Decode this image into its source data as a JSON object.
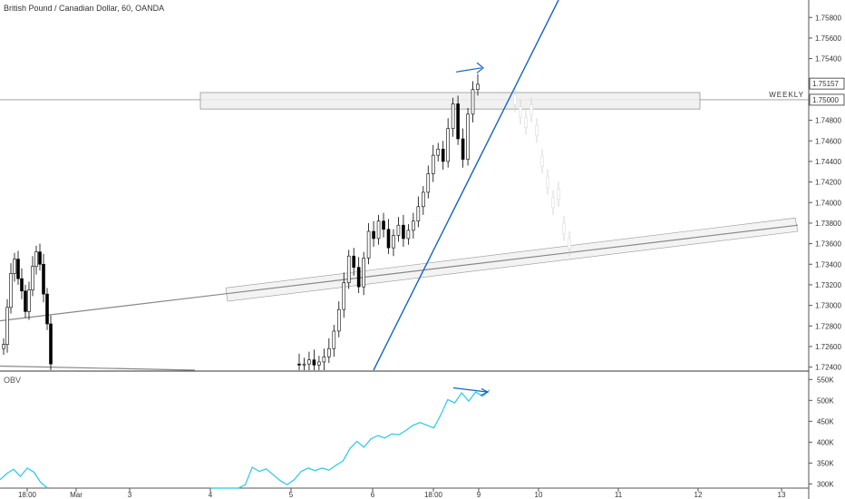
{
  "chart_title": "British Pound / Canadian Dollar, 60, OANDA",
  "obv_label": "OBV",
  "weekly_label": "WEEKLY",
  "chart_data": [
    {
      "type": "candlestick",
      "title": "British Pound / Canadian Dollar, 60, OANDA",
      "ylim": [
        1.7237,
        1.7597
      ],
      "y_ticks": [
        "1.75800",
        "1.75600",
        "1.75400",
        "1.75000",
        "1.74800",
        "1.74600",
        "1.74400",
        "1.74200",
        "1.74000",
        "1.73800",
        "1.73600",
        "1.73400",
        "1.73200",
        "1.73000",
        "1.72800",
        "1.72600",
        "1.72400"
      ],
      "last_price_label": "1.75157",
      "level_label": "1.75000",
      "level_price": 1.75,
      "x_ticks": [
        "18:00",
        "Mar",
        "3",
        "4",
        "5",
        "6",
        "18:00",
        "9",
        "10",
        "11",
        "12",
        "13"
      ],
      "approx_closes": [
        1.7262,
        1.7298,
        1.7331,
        1.7345,
        1.7326,
        1.7314,
        1.7294,
        1.7315,
        1.7338,
        1.7352,
        1.734,
        1.7311,
        1.7282,
        1.7243,
        1.7242,
        1.7243,
        1.7247,
        1.7242,
        1.7245,
        1.725,
        1.7258,
        1.7275,
        1.7296,
        1.7322,
        1.7348,
        1.7337,
        1.7318,
        1.7346,
        1.7372,
        1.7365,
        1.7382,
        1.7374,
        1.7356,
        1.7368,
        1.7378,
        1.7365,
        1.7373,
        1.7382,
        1.7396,
        1.741,
        1.7428,
        1.7446,
        1.7452,
        1.744,
        1.7472,
        1.7496,
        1.7462,
        1.7442,
        1.7486,
        1.751,
        1.7515
      ],
      "colors": {
        "up": "#ffffff",
        "down": "#000000",
        "trendline": "#1565c0",
        "support_line": "#888888"
      }
    },
    {
      "type": "line",
      "name": "OBV",
      "ylim": [
        290000,
        555000
      ],
      "y_ticks": [
        "550K",
        "500K",
        "450K",
        "400K",
        "350K",
        "300K"
      ],
      "approx_values": [
        310000,
        325000,
        335000,
        318000,
        338000,
        328000,
        303000,
        290000,
        290000,
        290000,
        290000,
        290000,
        290000,
        298000,
        340000,
        330000,
        336000,
        322000,
        308000,
        298000,
        310000,
        330000,
        338000,
        332000,
        338000,
        333000,
        345000,
        355000,
        385000,
        402000,
        388000,
        408000,
        416000,
        410000,
        420000,
        418000,
        428000,
        440000,
        447000,
        441000,
        434000,
        465000,
        502000,
        494000,
        518000,
        498000,
        520000,
        510000,
        525000
      ],
      "colors": {
        "line": "#27c8e8",
        "arrow": "#1565c0"
      }
    }
  ]
}
